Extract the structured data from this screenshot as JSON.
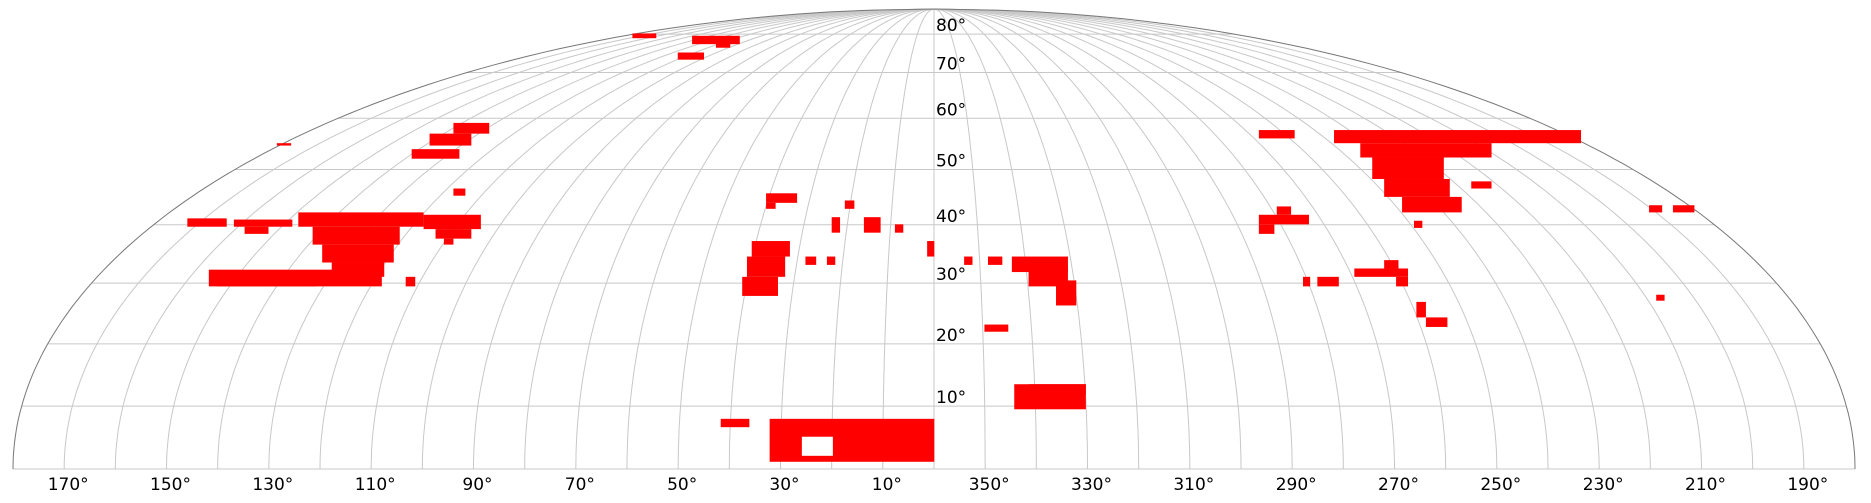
{
  "map": {
    "longitude_labels": [
      "170°",
      "150°",
      "130°",
      "110°",
      "90°",
      "70°",
      "50°",
      "30°",
      "10°",
      "350°",
      "330°",
      "310°",
      "290°",
      "270°",
      "250°",
      "230°",
      "210°",
      "190°"
    ],
    "latitude_labels": [
      "10°",
      "20°",
      "30°",
      "40°",
      "50°",
      "60°",
      "70°",
      "80°"
    ]
  }
}
